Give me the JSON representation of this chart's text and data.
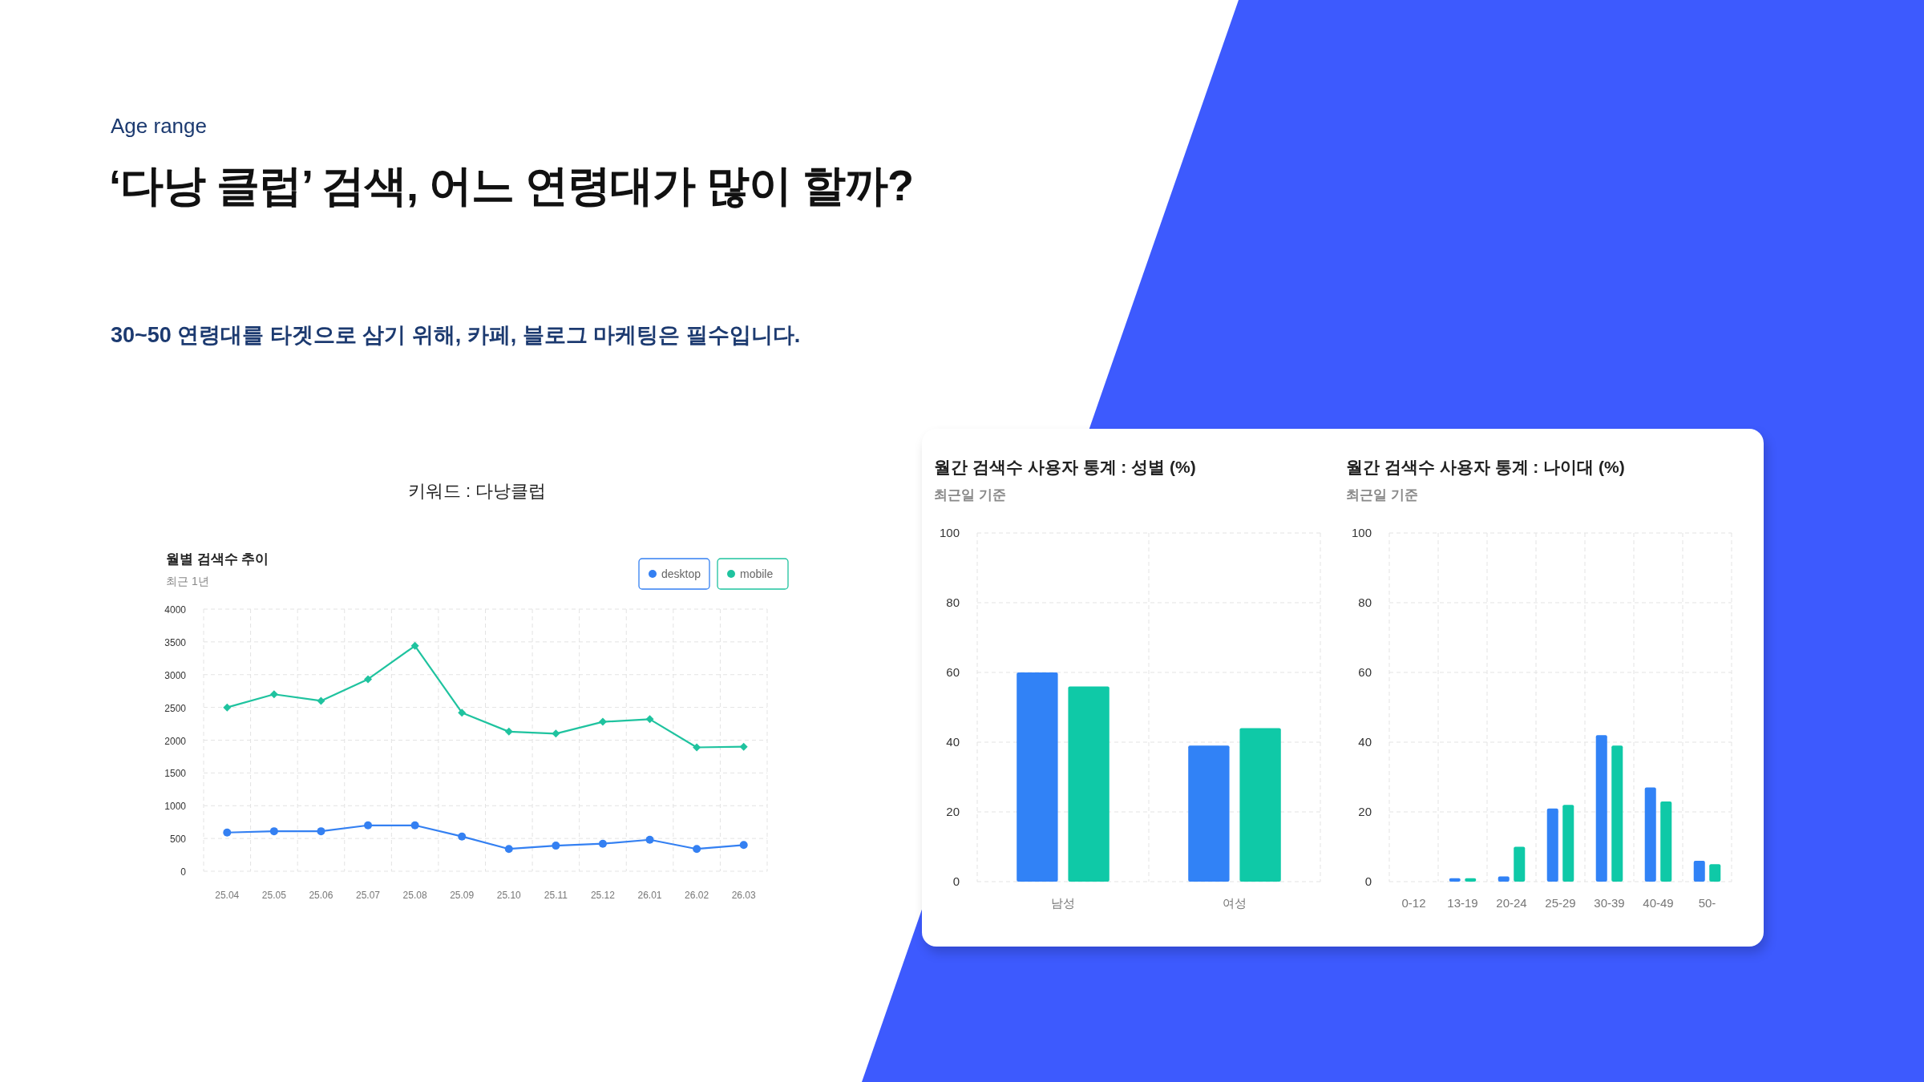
{
  "chart_data": [
    {
      "type": "other",
      "title": "‘다낭 클럽’ 검색, 어느 연령대가 많이 할까?",
      "subtitle": "30~50 연령대를 타겟으로 삼기 위해, 카페, 블로그 마케팅은 필수입니다.",
      "annotations": [
        "Age range"
      ]
    },
    {
      "type": "line",
      "title": "월별 검색수 추이",
      "subtitle": "최근 1년",
      "annotations": [
        "키워드 : 다낭클럽"
      ],
      "categories": [
        "25.04",
        "25.05",
        "25.06",
        "25.07",
        "25.08",
        "25.09",
        "25.10",
        "25.11",
        "25.12",
        "26.01",
        "26.02",
        "26.03"
      ],
      "series": [
        {
          "name": "desktop",
          "color": "#3480f2",
          "marker": "circle",
          "values": [
            590,
            610,
            610,
            700,
            700,
            530,
            340,
            390,
            420,
            480,
            340,
            400
          ]
        },
        {
          "name": "mobile",
          "color": "#1fc39f",
          "marker": "diamond",
          "values": [
            2500,
            2700,
            2600,
            2930,
            3440,
            2420,
            2130,
            2100,
            2280,
            2320,
            1890,
            1900
          ]
        }
      ],
      "ylim": [
        0,
        4000
      ],
      "yticks": [
        0,
        500,
        1000,
        1500,
        2000,
        2500,
        3000,
        3500,
        4000
      ],
      "grid": true,
      "legend": "top right"
    },
    {
      "type": "bar",
      "title": "월간 검색수 사용자 통계 : 성별 (%)",
      "subtitle": "최근일 기준",
      "categories": [
        "남성",
        "여성"
      ],
      "series": [
        {
          "color": "#3182f6",
          "values": [
            60,
            39
          ]
        },
        {
          "color": "#0fc9a7",
          "values": [
            56,
            44
          ]
        }
      ],
      "ylim": [
        0,
        100
      ],
      "yticks": [
        0,
        20,
        40,
        60,
        80,
        100
      ],
      "grid": true
    },
    {
      "type": "bar",
      "title": "월간 검색수 사용자 통계 : 나이대 (%)",
      "subtitle": "최근일 기준",
      "categories": [
        "0-12",
        "13-19",
        "20-24",
        "25-29",
        "30-39",
        "40-49",
        "50-"
      ],
      "series": [
        {
          "color": "#3182f6",
          "values": [
            0,
            1,
            1.5,
            21,
            42,
            27,
            6
          ]
        },
        {
          "color": "#0fc9a7",
          "values": [
            0,
            1,
            10,
            22,
            39,
            23,
            5
          ]
        }
      ],
      "ylim": [
        0,
        100
      ],
      "yticks": [
        0,
        20,
        40,
        60,
        80,
        100
      ],
      "grid": true
    }
  ]
}
